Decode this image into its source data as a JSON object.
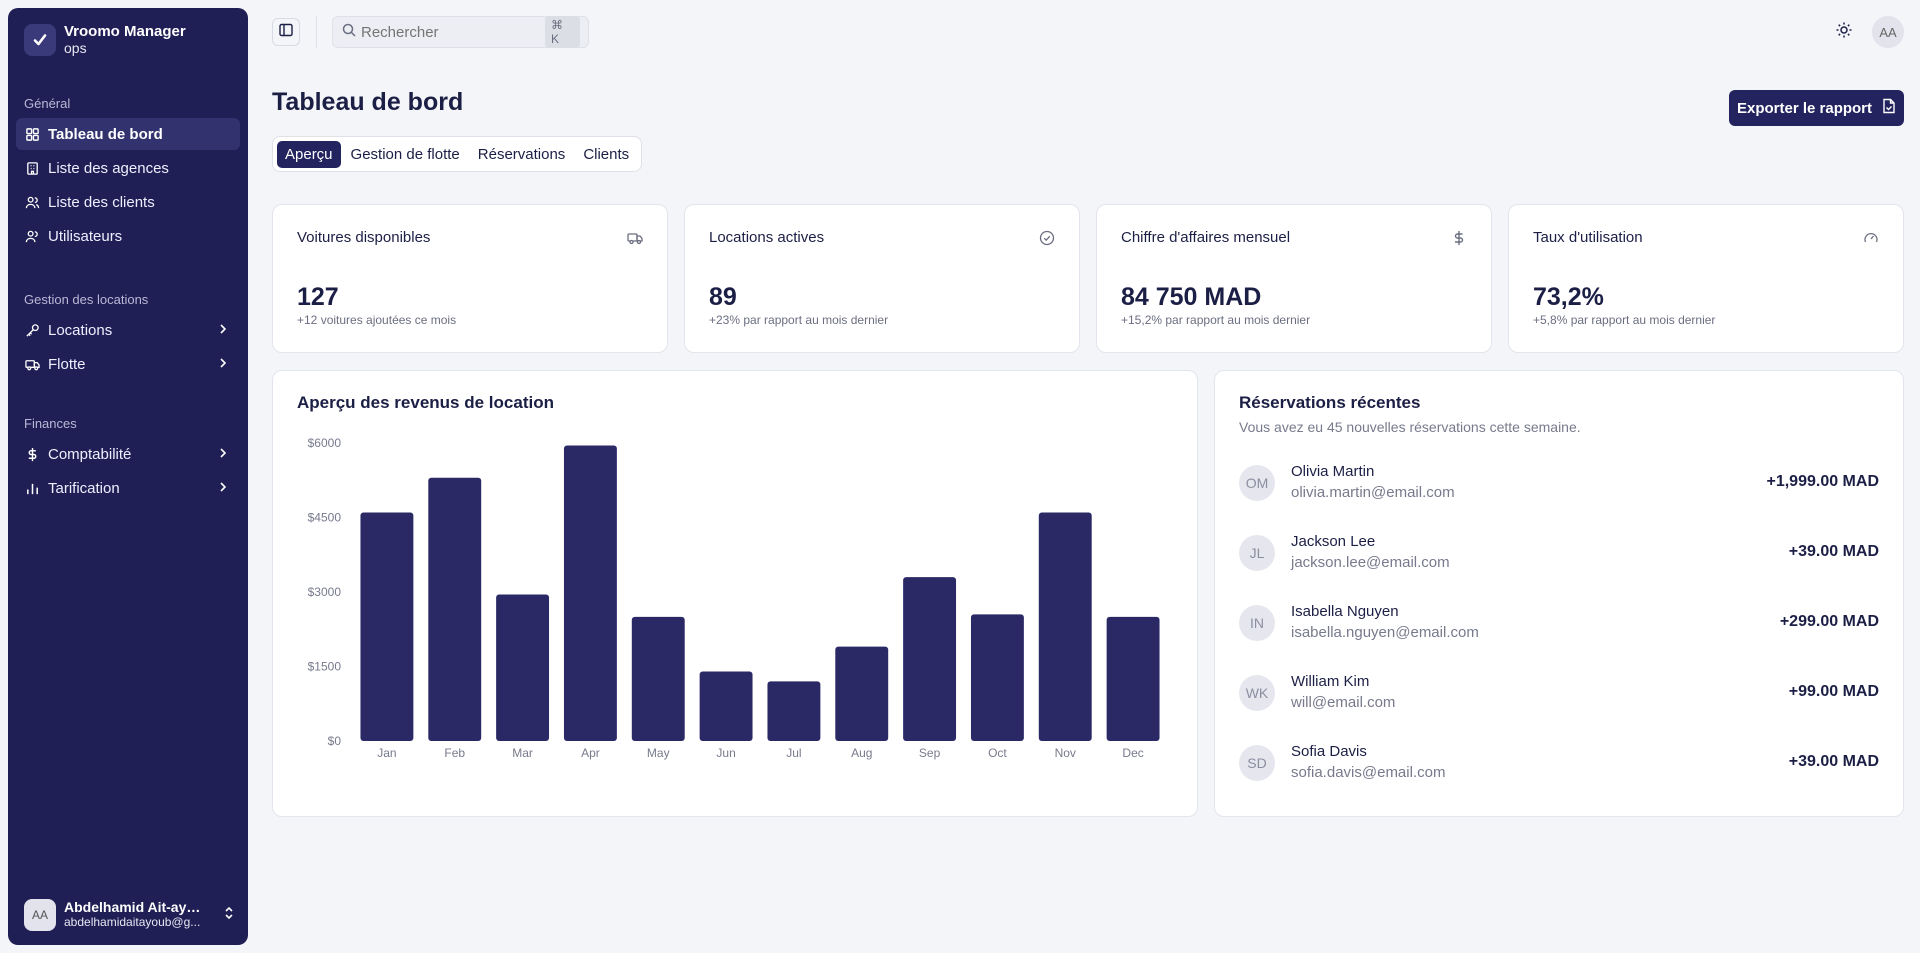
{
  "brand": {
    "name": "Vroomo Manager",
    "sub": "ops"
  },
  "sidebar": {
    "sections": [
      {
        "label": "Général",
        "items": [
          {
            "label": "Tableau de bord",
            "icon": "grid-icon",
            "active": true
          },
          {
            "label": "Liste des agences",
            "icon": "building-icon"
          },
          {
            "label": "Liste des clients",
            "icon": "users-icon"
          },
          {
            "label": "Utilisateurs",
            "icon": "user-icon"
          }
        ]
      },
      {
        "label": "Gestion des locations",
        "items": [
          {
            "label": "Locations",
            "icon": "key-icon"
          },
          {
            "label": "Flotte",
            "icon": "truck-icon"
          }
        ]
      },
      {
        "label": "Finances",
        "items": [
          {
            "label": "Comptabilité",
            "icon": "dollar-icon"
          },
          {
            "label": "Tarification",
            "icon": "bar-chart-icon"
          }
        ]
      }
    ],
    "user": {
      "initials": "AA",
      "name": "Abdelhamid Ait-ayo...",
      "email": "abdelhamidaitayoub@g..."
    }
  },
  "topbar": {
    "search_placeholder": "Rechercher",
    "shortcut": "⌘ K",
    "avatar": "AA"
  },
  "header": {
    "title": "Tableau de bord",
    "export_label": "Exporter le rapport"
  },
  "tabs": [
    {
      "label": "Aperçu",
      "active": true
    },
    {
      "label": "Gestion de flotte"
    },
    {
      "label": "Réservations"
    },
    {
      "label": "Clients"
    }
  ],
  "stats": [
    {
      "title": "Voitures disponibles",
      "value": "127",
      "sub": "+12 voitures ajoutées ce mois",
      "icon": "truck-icon"
    },
    {
      "title": "Locations actives",
      "value": "89",
      "sub": "+23% par rapport au mois dernier",
      "icon": "check-circle-icon"
    },
    {
      "title": "Chiffre d'affaires mensuel",
      "value": "84 750 MAD",
      "sub": "+15,2% par rapport au mois dernier",
      "icon": "dollar-icon"
    },
    {
      "title": "Taux d'utilisation",
      "value": "73,2%",
      "sub": "+5,8% par rapport au mois dernier",
      "icon": "gauge-icon"
    }
  ],
  "chart": {
    "title": "Aperçu des revenus de location"
  },
  "chart_data": {
    "type": "bar",
    "categories": [
      "Jan",
      "Feb",
      "Mar",
      "Apr",
      "May",
      "Jun",
      "Jul",
      "Aug",
      "Sep",
      "Oct",
      "Nov",
      "Dec"
    ],
    "values": [
      4600,
      5300,
      2950,
      5950,
      2500,
      1400,
      1200,
      1900,
      3300,
      2550,
      4600,
      2500
    ],
    "ytick_labels": [
      "$0",
      "$1500",
      "$3000",
      "$4500",
      "$6000"
    ],
    "ylim": [
      0,
      6000
    ],
    "color": "#2a2966",
    "grid": false
  },
  "reservations": {
    "title": "Réservations récentes",
    "subtitle": "Vous avez eu 45 nouvelles réservations cette semaine.",
    "items": [
      {
        "initials": "OM",
        "name": "Olivia Martin",
        "email": "olivia.martin@email.com",
        "amount": "+1,999.00 MAD"
      },
      {
        "initials": "JL",
        "name": "Jackson Lee",
        "email": "jackson.lee@email.com",
        "amount": "+39.00 MAD"
      },
      {
        "initials": "IN",
        "name": "Isabella Nguyen",
        "email": "isabella.nguyen@email.com",
        "amount": "+299.00 MAD"
      },
      {
        "initials": "WK",
        "name": "William Kim",
        "email": "will@email.com",
        "amount": "+99.00 MAD"
      },
      {
        "initials": "SD",
        "name": "Sofia Davis",
        "email": "sofia.davis@email.com",
        "amount": "+39.00 MAD"
      }
    ]
  }
}
